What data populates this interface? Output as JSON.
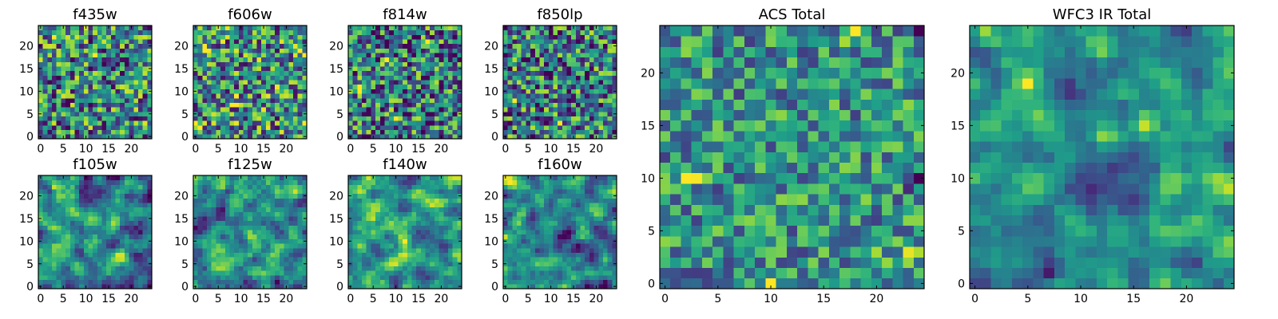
{
  "figure": {
    "colormap": "viridis",
    "value_range": [
      0,
      1
    ],
    "axis_range": [
      -0.5,
      24.5
    ]
  },
  "chart_data": [
    {
      "type": "heatmap",
      "title": "f435w",
      "grid": [
        25,
        25
      ],
      "xticks": [
        0,
        5,
        10,
        15,
        20
      ],
      "yticks": [
        0,
        5,
        10,
        15,
        20
      ],
      "seed": 11,
      "smooth": 0,
      "contrast": 0.95,
      "center": 0.46,
      "hotspots": [
        [
          22,
          3,
          0.3
        ],
        [
          18,
          12,
          0.32
        ],
        [
          13,
          21,
          0.28
        ],
        [
          4,
          8,
          0.28
        ],
        [
          2,
          23,
          0.25
        ]
      ]
    },
    {
      "type": "heatmap",
      "title": "f606w",
      "grid": [
        25,
        25
      ],
      "xticks": [
        0,
        5,
        10,
        15,
        20
      ],
      "yticks": [
        0,
        5,
        10,
        15,
        20
      ],
      "seed": 23,
      "smooth": 0,
      "contrast": 0.95,
      "center": 0.5,
      "hotspots": [
        [
          20,
          2,
          0.35
        ],
        [
          8,
          8,
          0.35
        ],
        [
          19,
          23,
          0.4
        ],
        [
          16,
          22,
          0.3
        ],
        [
          2,
          0,
          0.3
        ],
        [
          3,
          23,
          0.3
        ]
      ]
    },
    {
      "type": "heatmap",
      "title": "f814w",
      "grid": [
        25,
        25
      ],
      "xticks": [
        0,
        5,
        10,
        15,
        20
      ],
      "yticks": [
        0,
        5,
        10,
        15,
        20
      ],
      "seed": 37,
      "smooth": 0,
      "contrast": 0.95,
      "center": 0.42,
      "hotspots": [
        [
          20,
          17,
          0.4
        ],
        [
          17,
          8,
          0.3
        ],
        [
          10,
          2,
          0.32
        ],
        [
          4,
          10,
          0.3
        ]
      ]
    },
    {
      "type": "heatmap",
      "title": "f850lp",
      "grid": [
        25,
        25
      ],
      "xticks": [
        0,
        5,
        10,
        15,
        20
      ],
      "yticks": [
        0,
        5,
        10,
        15,
        20
      ],
      "seed": 41,
      "smooth": 0,
      "contrast": 0.95,
      "center": 0.42,
      "hotspots": [
        [
          8,
          2,
          0.4
        ],
        [
          15,
          23,
          0.3
        ],
        [
          3,
          12,
          0.28
        ]
      ]
    },
    {
      "type": "heatmap",
      "title": "f105w",
      "grid": [
        25,
        25
      ],
      "xticks": [
        0,
        5,
        10,
        15,
        20
      ],
      "yticks": [
        0,
        5,
        10,
        15,
        20
      ],
      "seed": 53,
      "smooth": 1,
      "contrast": 1.6,
      "center": 0.46,
      "hotspots": [
        [
          22,
          3,
          0.45
        ],
        [
          20,
          4,
          0.3
        ],
        [
          10,
          12,
          0.25
        ],
        [
          14,
          16,
          0.22
        ],
        [
          22,
          22,
          0.28
        ]
      ]
    },
    {
      "type": "heatmap",
      "title": "f125w",
      "grid": [
        25,
        25
      ],
      "xticks": [
        0,
        5,
        10,
        15,
        20
      ],
      "yticks": [
        0,
        5,
        10,
        15,
        20
      ],
      "seed": 67,
      "smooth": 1,
      "contrast": 1.6,
      "center": 0.5,
      "hotspots": [
        [
          22,
          6,
          0.4
        ],
        [
          7,
          12,
          0.35
        ],
        [
          0,
          0,
          0.4
        ],
        [
          18,
          10,
          0.25
        ]
      ]
    },
    {
      "type": "heatmap",
      "title": "f140w",
      "grid": [
        25,
        25
      ],
      "xticks": [
        0,
        5,
        10,
        15,
        20
      ],
      "yticks": [
        0,
        5,
        10,
        15,
        20
      ],
      "seed": 71,
      "smooth": 1,
      "contrast": 1.6,
      "center": 0.52,
      "hotspots": [
        [
          10,
          12,
          0.5
        ],
        [
          21,
          2,
          0.3
        ],
        [
          22,
          22,
          0.3
        ],
        [
          15,
          5,
          0.25
        ]
      ]
    },
    {
      "type": "heatmap",
      "title": "f160w",
      "grid": [
        25,
        25
      ],
      "xticks": [
        0,
        5,
        10,
        15,
        20
      ],
      "yticks": [
        0,
        5,
        10,
        15,
        20
      ],
      "seed": 83,
      "smooth": 1,
      "contrast": 1.6,
      "center": 0.46,
      "hotspots": [
        [
          23,
          1,
          0.45
        ],
        [
          20,
          3,
          0.3
        ],
        [
          11,
          18,
          0.25
        ],
        [
          6,
          22,
          0.25
        ]
      ]
    },
    {
      "type": "heatmap",
      "title": "ACS Total",
      "grid": [
        25,
        25
      ],
      "xticks": [
        0,
        5,
        10,
        15,
        20
      ],
      "yticks": [
        0,
        5,
        10,
        15,
        20
      ],
      "seed": 97,
      "smooth": 0,
      "contrast": 0.65,
      "center": 0.5,
      "hotspots": [
        [
          24,
          18,
          0.5
        ],
        [
          10,
          2,
          0.45
        ],
        [
          0,
          10,
          0.35
        ],
        [
          3,
          23,
          0.3
        ],
        [
          24,
          24,
          -0.5
        ],
        [
          10,
          24,
          -0.45
        ],
        [
          18,
          15,
          0.25
        ],
        [
          2,
          20,
          0.28
        ]
      ]
    },
    {
      "type": "heatmap",
      "title": "WFC3 IR Total",
      "grid": [
        25,
        25
      ],
      "xticks": [
        0,
        5,
        10,
        15,
        20
      ],
      "yticks": [
        0,
        5,
        10,
        15,
        20
      ],
      "seed": 109,
      "smooth": 1,
      "contrast": 1.3,
      "center": 0.48,
      "hotspots": [
        [
          24,
          1,
          0.45
        ],
        [
          23,
          2,
          0.4
        ],
        [
          21,
          3,
          0.35
        ],
        [
          19,
          5,
          0.45
        ],
        [
          15,
          16,
          0.4
        ],
        [
          14,
          12,
          0.25
        ],
        [
          1,
          7,
          -0.4
        ]
      ]
    }
  ]
}
